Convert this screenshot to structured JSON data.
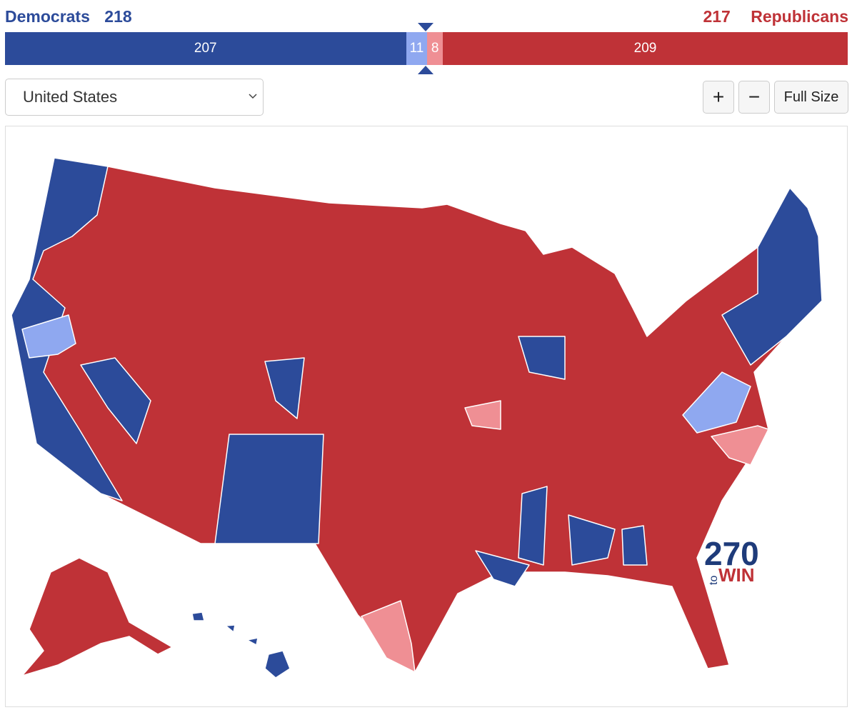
{
  "header": {
    "left_label": "Democrats",
    "left_total": 218,
    "right_total": 217,
    "right_label": "Republicans"
  },
  "bar": {
    "segments": [
      {
        "value": 207,
        "color": "#2c4b9a"
      },
      {
        "value": 11,
        "color": "#8fa8f0"
      },
      {
        "value": 8,
        "color": "#ef8f94"
      },
      {
        "value": 209,
        "color": "#bf3237"
      }
    ]
  },
  "select": {
    "value": "United States"
  },
  "buttons": [
    "+",
    "−",
    "Full Size"
  ],
  "logo": {
    "number": "270",
    "to": "to",
    "win": "WIN"
  }
}
